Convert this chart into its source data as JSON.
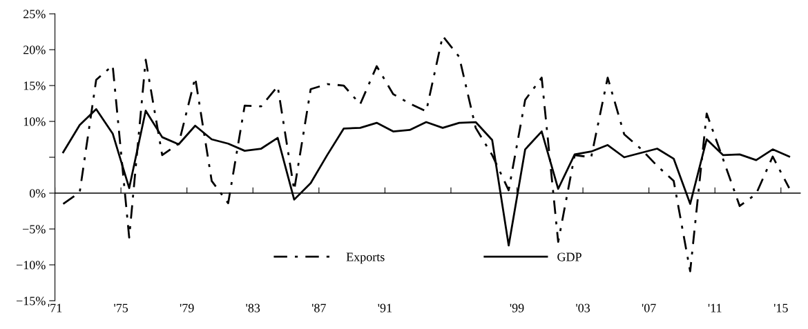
{
  "chart_data": {
    "type": "line",
    "x": [
      1971.5,
      1972.5,
      1973.5,
      1974.5,
      1975.5,
      1976.5,
      1977.5,
      1978.5,
      1979.5,
      1980.5,
      1981.5,
      1982.5,
      1983.5,
      1984.5,
      1985.5,
      1986.5,
      1987.5,
      1988.5,
      1989.5,
      1990.5,
      1991.5,
      1992.5,
      1993.5,
      1994.5,
      1995.5,
      1996.5,
      1997.5,
      1998.5,
      1999.5,
      2000.5,
      2001.5,
      2002.5,
      2003.5,
      2004.5,
      2005.5,
      2006.5,
      2007.5,
      2008.5,
      2009.5,
      2010.5,
      2011.5,
      2012.5,
      2013.5,
      2014.5,
      2015.5
    ],
    "series": [
      {
        "name": "Exports",
        "color": "#000000",
        "line_style": "dashdot",
        "values": [
          -1.5,
          0.1,
          15.8,
          17.8,
          -6.2,
          18.6,
          5.3,
          6.9,
          16.1,
          1.7,
          -1.4,
          12.2,
          12.1,
          14.9,
          0.4,
          14.5,
          15.2,
          15.0,
          12.4,
          17.7,
          13.8,
          12.5,
          11.4,
          21.9,
          19.0,
          9.1,
          5.3,
          0.4,
          13.0,
          16.1,
          -6.8,
          5.3,
          5.0,
          16.1,
          8.2,
          6.2,
          3.8,
          1.7,
          -10.9,
          11.1,
          4.7,
          -1.8,
          -0.1,
          5.1,
          0.7
        ]
      },
      {
        "name": "GDP",
        "color": "#000000",
        "line_style": "solid",
        "values": [
          5.7,
          9.5,
          11.7,
          8.3,
          0.7,
          11.5,
          7.8,
          6.8,
          9.4,
          7.5,
          6.9,
          5.9,
          6.2,
          7.7,
          -0.9,
          1.4,
          5.3,
          9.0,
          9.1,
          9.8,
          8.6,
          8.8,
          9.9,
          9.1,
          9.8,
          9.9,
          7.4,
          -7.3,
          6.1,
          8.6,
          0.6,
          5.4,
          5.8,
          6.7,
          5.0,
          5.6,
          6.2,
          4.8,
          -1.5,
          7.5,
          5.3,
          5.4,
          4.6,
          6.1,
          5.1
        ]
      }
    ],
    "xlim": [
      1971,
      2016.2
    ],
    "xticks": [
      {
        "value": 1971,
        "label": "'71"
      },
      {
        "value": 1975,
        "label": "'75"
      },
      {
        "value": 1979,
        "label": "'79"
      },
      {
        "value": 1983,
        "label": "'83"
      },
      {
        "value": 1987,
        "label": "'87"
      },
      {
        "value": 1991,
        "label": "'91"
      },
      {
        "value": 1995,
        "label": null
      },
      {
        "value": 1999,
        "label": "'99"
      },
      {
        "value": 2003,
        "label": "'03"
      },
      {
        "value": 2007,
        "label": "'07"
      },
      {
        "value": 2011,
        "label": "'11"
      },
      {
        "value": 2015,
        "label": "'15"
      }
    ],
    "ylim": [
      -15,
      25
    ],
    "yticks": [
      {
        "value": -15,
        "label": "−15%"
      },
      {
        "value": -10,
        "label": "−10%"
      },
      {
        "value": -5,
        "label": "−5%"
      },
      {
        "value": 0,
        "label": "0%"
      },
      {
        "value": 5,
        "label": null
      },
      {
        "value": 10,
        "label": "10%"
      },
      {
        "value": 15,
        "label": "15%"
      },
      {
        "value": 20,
        "label": "20%"
      },
      {
        "value": 25,
        "label": "25%"
      }
    ],
    "ref_lines": [
      {
        "axis": "y",
        "value": 0,
        "color": "#000000",
        "line_style": "solid"
      }
    ],
    "legend": "bottom",
    "marker": "none"
  }
}
